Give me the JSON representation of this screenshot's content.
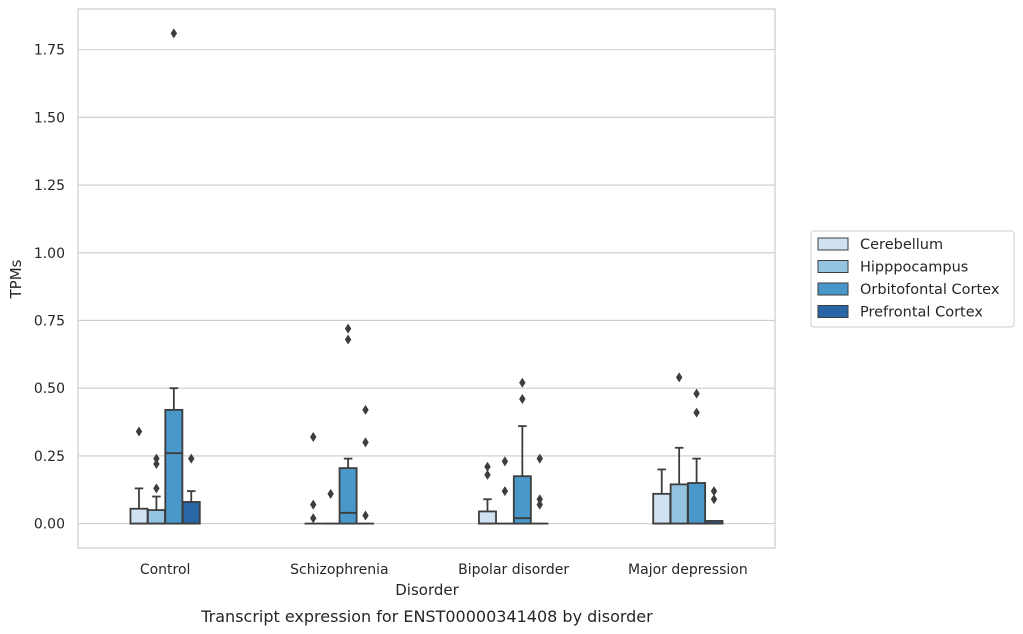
{
  "chart_data": {
    "type": "box",
    "caption": "Transcript expression for ENST00000341408 by disorder",
    "xlabel": "Disorder",
    "ylabel": "TPMs",
    "ylim": [
      -0.09,
      1.9
    ],
    "yticks": [
      0.0,
      0.25,
      0.5,
      0.75,
      1.0,
      1.25,
      1.5,
      1.75
    ],
    "ytick_labels": [
      "0.00",
      "0.25",
      "0.50",
      "0.75",
      "1.00",
      "1.25",
      "1.50",
      "1.75"
    ],
    "grid": "horizontal",
    "legend_position": "right",
    "categories": [
      "Control",
      "Schizophrenia",
      "Bipolar disorder",
      "Major depression"
    ],
    "series": [
      {
        "name": "Cerebellum",
        "color": "#d0e1f2",
        "boxes": [
          {
            "q1": 0.0,
            "median": 0.0,
            "q3": 0.055,
            "whisker_low": 0.0,
            "whisker_high": 0.13,
            "outliers": [
              0.34
            ]
          },
          {
            "q1": 0.0,
            "median": 0.0,
            "q3": 0.0,
            "whisker_low": 0.0,
            "whisker_high": 0.0,
            "outliers": [
              0.32,
              0.07,
              0.02
            ]
          },
          {
            "q1": 0.0,
            "median": 0.0,
            "q3": 0.045,
            "whisker_low": 0.0,
            "whisker_high": 0.09,
            "outliers": [
              0.21,
              0.18
            ]
          },
          {
            "q1": 0.0,
            "median": 0.0,
            "q3": 0.11,
            "whisker_low": 0.0,
            "whisker_high": 0.2,
            "outliers": []
          }
        ]
      },
      {
        "name": "Hipppocampus",
        "color": "#94c4df",
        "boxes": [
          {
            "q1": 0.0,
            "median": 0.0,
            "q3": 0.05,
            "whisker_low": 0.0,
            "whisker_high": 0.1,
            "outliers": [
              0.24,
              0.22,
              0.13
            ]
          },
          {
            "q1": 0.0,
            "median": 0.0,
            "q3": 0.0,
            "whisker_low": 0.0,
            "whisker_high": 0.0,
            "outliers": [
              0.11
            ]
          },
          {
            "q1": 0.0,
            "median": 0.0,
            "q3": 0.0,
            "whisker_low": 0.0,
            "whisker_high": 0.0,
            "outliers": [
              0.23,
              0.12
            ]
          },
          {
            "q1": 0.0,
            "median": 0.0,
            "q3": 0.145,
            "whisker_low": 0.0,
            "whisker_high": 0.28,
            "outliers": [
              0.54
            ]
          }
        ]
      },
      {
        "name": "Orbitofontal Cortex",
        "color": "#4a98c9",
        "boxes": [
          {
            "q1": 0.0,
            "median": 0.26,
            "q3": 0.42,
            "whisker_low": 0.0,
            "whisker_high": 0.5,
            "outliers": [
              1.81
            ]
          },
          {
            "q1": 0.0,
            "median": 0.04,
            "q3": 0.205,
            "whisker_low": 0.0,
            "whisker_high": 0.24,
            "outliers": [
              0.72,
              0.68
            ]
          },
          {
            "q1": 0.0,
            "median": 0.02,
            "q3": 0.175,
            "whisker_low": 0.0,
            "whisker_high": 0.36,
            "outliers": [
              0.52,
              0.46
            ]
          },
          {
            "q1": 0.0,
            "median": 0.0,
            "q3": 0.15,
            "whisker_low": 0.0,
            "whisker_high": 0.24,
            "outliers": [
              0.48,
              0.41
            ]
          }
        ]
      },
      {
        "name": "Prefrontal Cortex",
        "color": "#2866a7",
        "boxes": [
          {
            "q1": 0.0,
            "median": 0.0,
            "q3": 0.08,
            "whisker_low": 0.0,
            "whisker_high": 0.12,
            "outliers": [
              0.24
            ]
          },
          {
            "q1": 0.0,
            "median": 0.0,
            "q3": 0.0,
            "whisker_low": 0.0,
            "whisker_high": 0.0,
            "outliers": [
              0.42,
              0.3,
              0.03
            ]
          },
          {
            "q1": 0.0,
            "median": 0.0,
            "q3": 0.0,
            "whisker_low": 0.0,
            "whisker_high": 0.0,
            "outliers": [
              0.24,
              0.09,
              0.07
            ]
          },
          {
            "q1": 0.0,
            "median": 0.0,
            "q3": 0.01,
            "whisker_low": 0.0,
            "whisker_high": 0.01,
            "outliers": [
              0.12,
              0.09
            ]
          }
        ]
      }
    ]
  }
}
